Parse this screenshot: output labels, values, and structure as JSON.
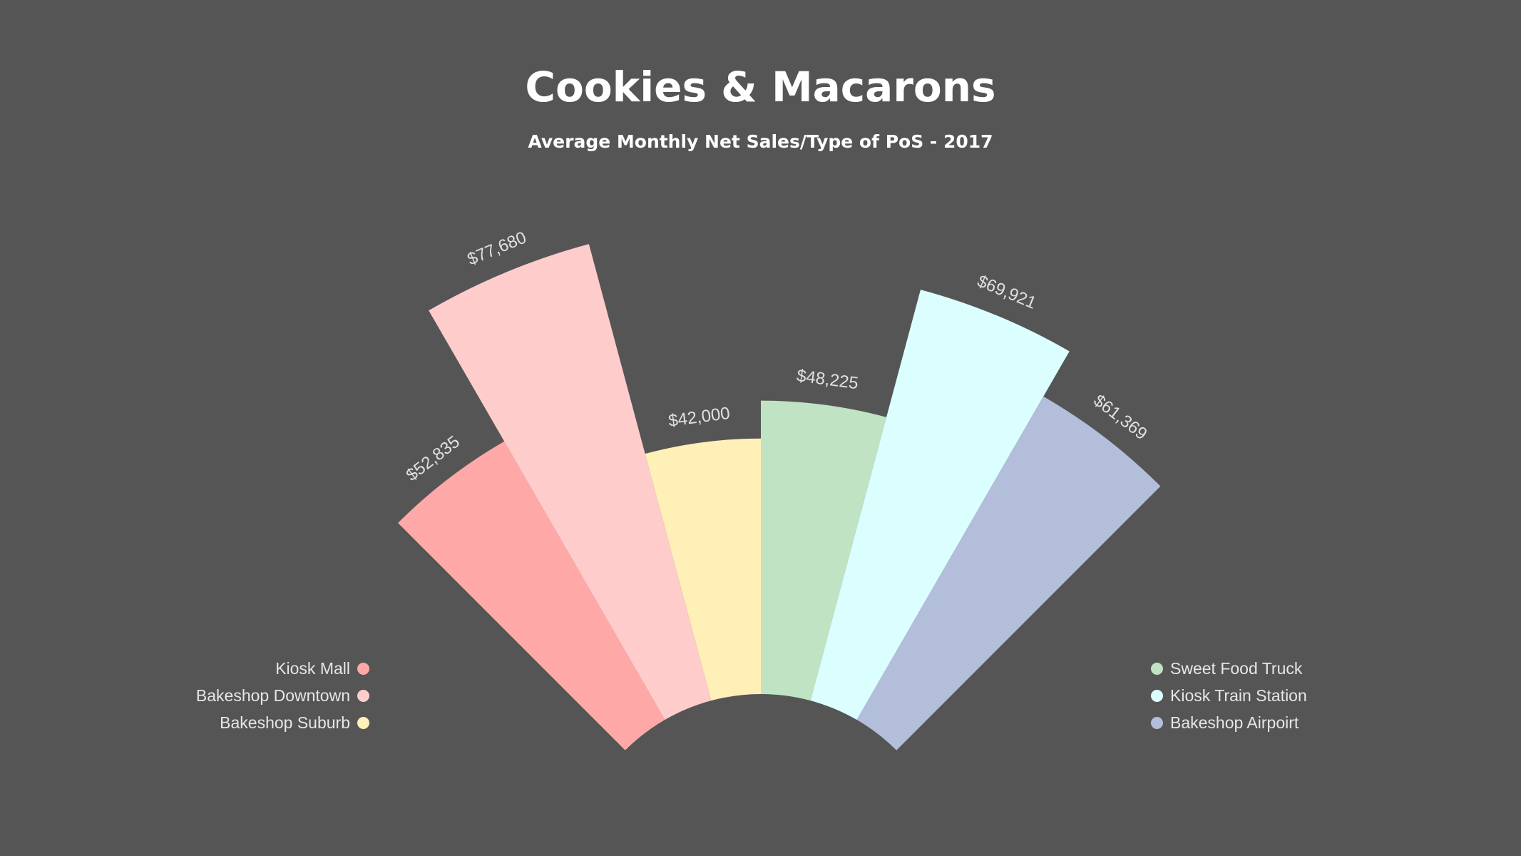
{
  "chart_data": {
    "type": "radial-bar",
    "title": "Cookies & Macarons",
    "subtitle": "Average Monthly Net Sales/Type of PoS - 2017",
    "categories": [
      "Kiosk Mall",
      "Bakeshop Downtown",
      "Bakeshop Suburb",
      "Sweet Food Truck",
      "Kiosk Train Station",
      "Bakeshop Airpoirt"
    ],
    "values": [
      52835,
      77680,
      42000,
      48225,
      69921,
      61369
    ],
    "labels": [
      "$52,835",
      "$77,680",
      "$42,000",
      "$48,225",
      "$69,921",
      "$61,369"
    ],
    "colors": [
      "#FFA8A8",
      "#FFCCCC",
      "#FFF0B8",
      "#C0E3C3",
      "#DBFFFF",
      "#B3BEDB"
    ],
    "legend_placement": "bottom-left and bottom-right",
    "background": "#555555"
  }
}
